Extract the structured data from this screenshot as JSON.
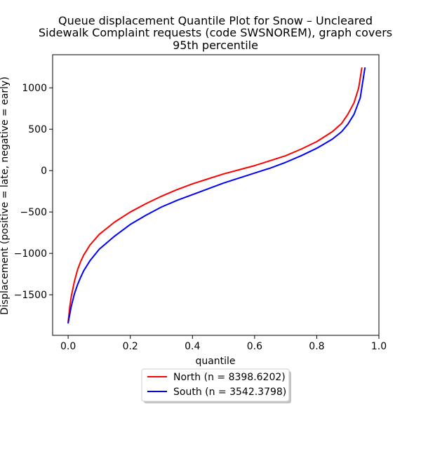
{
  "chart_data": {
    "type": "line",
    "title_lines": [
      "Queue displacement Quantile Plot for Snow – Uncleared",
      "Sidewalk Complaint  requests (code SWSNOREM), graph covers",
      "95th percentile"
    ],
    "xlabel": "quantile",
    "ylabel": "Displacement (positive = late, negative = early)",
    "xlim": [
      -0.05,
      1.0
    ],
    "ylim": [
      -1990,
      1400
    ],
    "x_ticks": [
      0.0,
      0.2,
      0.4,
      0.6,
      0.8,
      1.0
    ],
    "x_tick_labels": [
      "0.0",
      "0.2",
      "0.4",
      "0.6",
      "0.8",
      "1.0"
    ],
    "y_ticks": [
      -1500,
      -1000,
      -500,
      0,
      500,
      1000
    ],
    "y_tick_labels": [
      "−1500",
      "−1000",
      "−500",
      "0",
      "500",
      "1000"
    ],
    "grid": false,
    "legend_placement": "below-center",
    "series": [
      {
        "name": "North (n = 8398.6202)",
        "color": "#ff0000",
        "x": [
          0.0,
          0.005,
          0.01,
          0.02,
          0.03,
          0.04,
          0.05,
          0.07,
          0.1,
          0.15,
          0.2,
          0.25,
          0.3,
          0.35,
          0.4,
          0.45,
          0.5,
          0.55,
          0.6,
          0.65,
          0.7,
          0.75,
          0.8,
          0.85,
          0.88,
          0.9,
          0.92,
          0.935,
          0.945
        ],
        "y": [
          -1830,
          -1650,
          -1520,
          -1340,
          -1200,
          -1100,
          -1020,
          -900,
          -770,
          -620,
          -500,
          -400,
          -310,
          -230,
          -160,
          -100,
          -40,
          10,
          60,
          120,
          180,
          260,
          350,
          470,
          570,
          680,
          820,
          1000,
          1240
        ]
      },
      {
        "name": "South (n = 3542.3798)",
        "color": "#0000ff",
        "x": [
          0.0,
          0.005,
          0.01,
          0.02,
          0.03,
          0.04,
          0.05,
          0.07,
          0.1,
          0.15,
          0.2,
          0.25,
          0.3,
          0.35,
          0.4,
          0.45,
          0.5,
          0.55,
          0.6,
          0.65,
          0.7,
          0.75,
          0.8,
          0.85,
          0.88,
          0.9,
          0.92,
          0.94,
          0.955
        ],
        "y": [
          -1840,
          -1740,
          -1640,
          -1490,
          -1380,
          -1290,
          -1210,
          -1090,
          -950,
          -790,
          -650,
          -540,
          -440,
          -360,
          -290,
          -220,
          -150,
          -90,
          -30,
          30,
          100,
          180,
          270,
          380,
          470,
          560,
          680,
          880,
          1240
        ]
      }
    ]
  }
}
